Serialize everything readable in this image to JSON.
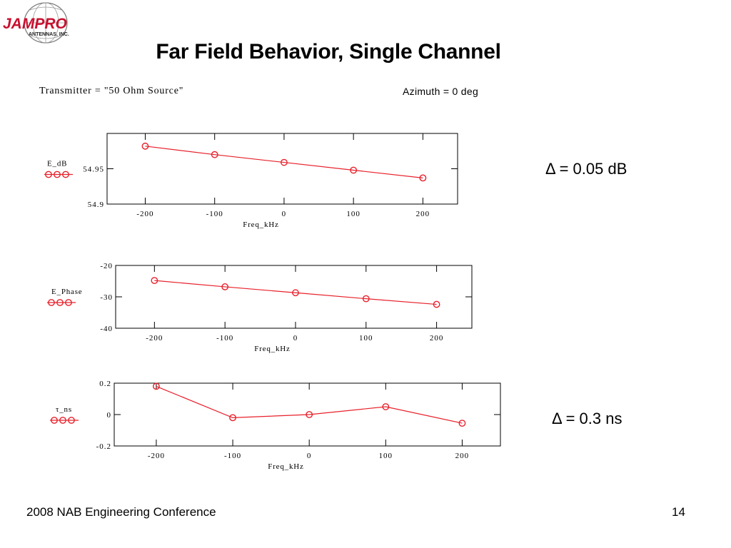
{
  "slide": {
    "logo": {
      "name": "JAMPRO",
      "sub": "ANTENNAS, INC."
    },
    "title": "Far Field Behavior, Single Channel",
    "header_left": "Transmitter = \"50 Ohm Source\"",
    "header_right": "Azimuth = 0 deg",
    "delta_db": "Δ = 0.05 dB",
    "delta_ns": "Δ = 0.3 ns",
    "footer_left": "2008 NAB Engineering Conference",
    "page_number": "14"
  },
  "colors": {
    "series": "#e8202a",
    "axis": "#000000"
  },
  "chart_data": [
    {
      "type": "line",
      "xlabel": "Freq_kHz",
      "ylabel": "E_dB",
      "series": [
        {
          "name": "E_dB",
          "x": [
            -200,
            -100,
            0,
            100,
            200
          ],
          "y": [
            54.982,
            54.97,
            54.959,
            54.948,
            54.937
          ]
        }
      ],
      "xticks": [
        -200,
        -100,
        0,
        100,
        200
      ],
      "xtick_labels": [
        "-200",
        "-100",
        "0",
        "100",
        "200"
      ],
      "yticks": [
        54.9,
        54.95
      ],
      "ytick_labels": [
        "54.9",
        "54.95"
      ],
      "xlim": [
        -255,
        250
      ],
      "ylim": [
        54.9,
        55.0
      ],
      "grid": false
    },
    {
      "type": "line",
      "xlabel": "Freq_kHz",
      "ylabel": "E_Phase",
      "series": [
        {
          "name": "E_Phase",
          "x": [
            -200,
            -100,
            0,
            100,
            200
          ],
          "y": [
            -24.8,
            -26.8,
            -28.7,
            -30.6,
            -32.4
          ]
        }
      ],
      "xticks": [
        -200,
        -100,
        0,
        100,
        200
      ],
      "xtick_labels": [
        "-200",
        "-100",
        "0",
        "100",
        "200"
      ],
      "yticks": [
        -20,
        -30,
        -40
      ],
      "ytick_labels": [
        "-20",
        "-30",
        "-40"
      ],
      "xlim": [
        -255,
        250
      ],
      "ylim": [
        -40,
        -20
      ],
      "grid": false
    },
    {
      "type": "line",
      "xlabel": "Freq_kHz",
      "ylabel": "τ_ns",
      "series": [
        {
          "name": "τ_ns",
          "x": [
            -200,
            -100,
            0,
            100,
            200
          ],
          "y": [
            0.18,
            -0.02,
            0.0,
            0.05,
            -0.055
          ]
        }
      ],
      "xticks": [
        -200,
        -100,
        0,
        100,
        200
      ],
      "xtick_labels": [
        "-200",
        "-100",
        "0",
        "100",
        "200"
      ],
      "yticks": [
        0.2,
        0,
        -0.2
      ],
      "ytick_labels": [
        "0.2",
        "0",
        "-0.2"
      ],
      "xlim": [
        -255,
        250
      ],
      "ylim": [
        -0.2,
        0.2
      ],
      "grid": false
    }
  ]
}
